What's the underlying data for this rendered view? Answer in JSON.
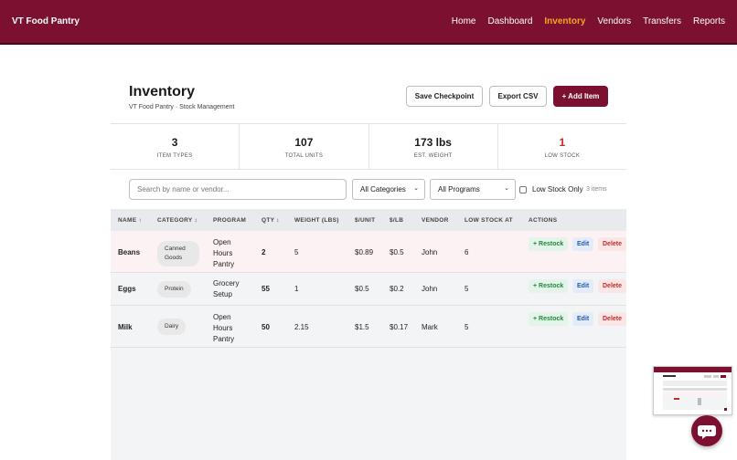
{
  "brand": "VT Food Pantry",
  "nav": [
    {
      "label": "Home",
      "active": false
    },
    {
      "label": "Dashboard",
      "active": false
    },
    {
      "label": "Inventory",
      "active": true
    },
    {
      "label": "Vendors",
      "active": false
    },
    {
      "label": "Transfers",
      "active": false
    },
    {
      "label": "Reports",
      "active": false
    }
  ],
  "header": {
    "title": "Inventory",
    "subtitle": "VT Food Pantry · Stock Management",
    "save_label": "Save Checkpoint",
    "export_label": "Export CSV",
    "add_label": "+ Add Item"
  },
  "stats": [
    {
      "value": "3",
      "label": "ITEM TYPES"
    },
    {
      "value": "107",
      "label": "TOTAL UNITS"
    },
    {
      "value": "173 lbs",
      "label": "EST. WEIGHT"
    },
    {
      "value": "1",
      "label": "LOW STOCK"
    }
  ],
  "filters": {
    "search_placeholder": "Search by name or vendor...",
    "category": "All Categories",
    "program": "All Programs",
    "low_stock_label": "Low Stock Only",
    "low_stock_checked": false,
    "count": "3 items"
  },
  "columns": [
    "NAME ↑",
    "CATEGORY ↕",
    "PROGRAM",
    "QTY ↕",
    "WEIGHT (LBS)",
    "$/UNIT",
    "$/LB",
    "VENDOR",
    "LOW STOCK AT",
    "ACTIONS"
  ],
  "rows": [
    {
      "name": "Beans",
      "category": "Canned Goods",
      "program": "Open Hours Pantry",
      "qty": "2",
      "weight": "5",
      "unit_price": "$0.89",
      "lb_price": "$0.5",
      "vendor": "John",
      "low_stock_at": "6",
      "low": true
    },
    {
      "name": "Eggs",
      "category": "Protein",
      "program": "Grocery Setup",
      "qty": "55",
      "weight": "1",
      "unit_price": "$0.5",
      "lb_price": "$0.2",
      "vendor": "John",
      "low_stock_at": "5",
      "low": false
    },
    {
      "name": "Milk",
      "category": "Dairy",
      "program": "Open Hours Pantry",
      "qty": "50",
      "weight": "2.15",
      "unit_price": "$1.5",
      "lb_price": "$0.17",
      "vendor": "Mark",
      "low_stock_at": "5",
      "low": false
    }
  ],
  "actions": {
    "restock": "+ Restock",
    "edit": "Edit",
    "delete": "Delete"
  },
  "icons": {
    "chat": "chat-bubble-icon",
    "sort": "sort-icon",
    "chevron": "chevron-down-icon"
  },
  "colors": {
    "brand": "#7b1030",
    "active_nav": "#f5a623",
    "low_stock": "#c62828",
    "restock": "#1f8a3a",
    "edit": "#1e5bb8"
  }
}
